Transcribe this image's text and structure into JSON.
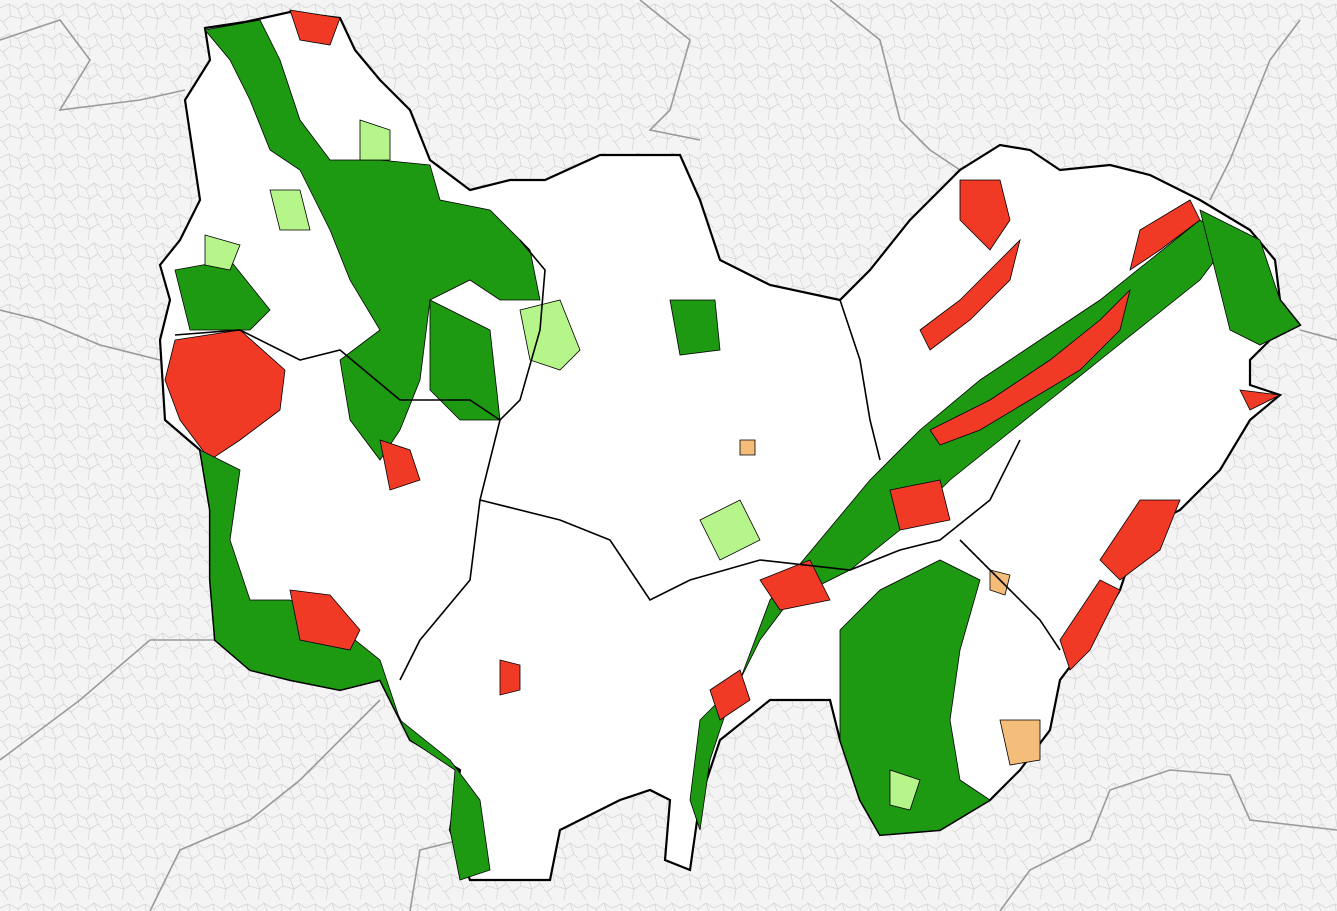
{
  "map": {
    "colors": {
      "background": "#f4f4f4",
      "outside_lines": "#d6d6d6",
      "outside_borders": "#9a9a9a",
      "region": "#ffffff",
      "region_border": "#000000",
      "high": "#f03a26",
      "medium": "#1e9a12",
      "low": "#b5f58a",
      "other": "#f5bd7a"
    }
  }
}
